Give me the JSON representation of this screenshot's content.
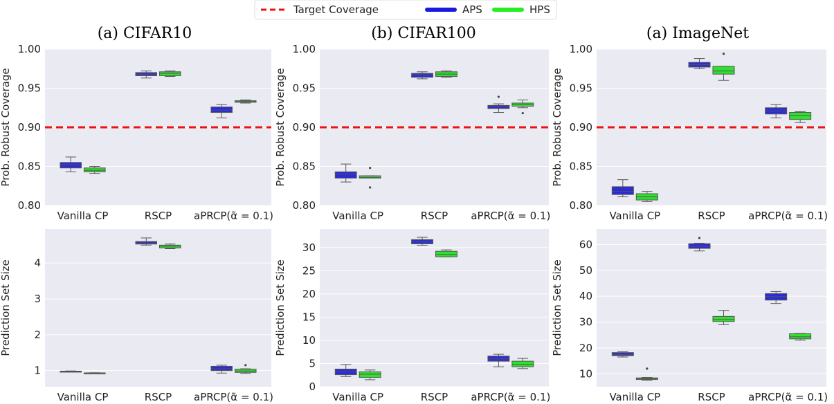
{
  "legend": {
    "items": [
      {
        "label": "Target Coverage",
        "color": "#ee1111",
        "style": "dashed"
      },
      {
        "label": "APS",
        "color": "#1a1adf",
        "style": "solid"
      },
      {
        "label": "HPS",
        "color": "#22ee22",
        "style": "solid"
      }
    ]
  },
  "columns": [
    {
      "title": "(a) CIFAR10"
    },
    {
      "title": "(b) CIFAR100"
    },
    {
      "title": "(a) ImageNet"
    }
  ],
  "categories": [
    "Vanilla CP",
    "RSCP",
    "aPRCP(α̃ = 0.1)"
  ],
  "colors": {
    "aps": "#2b2bd9",
    "hps": "#2fe02f",
    "target": "#ee1111",
    "panel_bg": "#eaeaf2",
    "grid": "#ffffff"
  },
  "chart_data": [
    {
      "type": "box",
      "dataset": "CIFAR10",
      "ylabel": "Prob. Robust Coverage",
      "ylim": [
        0.8,
        1.0
      ],
      "yticks": [
        "0.80",
        "0.85",
        "0.90",
        "0.95",
        "1.00"
      ],
      "ytick_values": [
        0.8,
        0.85,
        0.9,
        0.95,
        1.0
      ],
      "target": 0.9,
      "series": [
        {
          "name": "APS",
          "boxes": [
            {
              "whislo": 0.843,
              "q1": 0.848,
              "med": 0.852,
              "q3": 0.855,
              "whishi": 0.862,
              "fliers": []
            },
            {
              "whislo": 0.963,
              "q1": 0.966,
              "med": 0.968,
              "q3": 0.97,
              "whishi": 0.972,
              "fliers": []
            },
            {
              "whislo": 0.912,
              "q1": 0.919,
              "med": 0.922,
              "q3": 0.926,
              "whishi": 0.929,
              "fliers": []
            }
          ]
        },
        {
          "name": "HPS",
          "boxes": [
            {
              "whislo": 0.841,
              "q1": 0.843,
              "med": 0.845,
              "q3": 0.848,
              "whishi": 0.85,
              "fliers": []
            },
            {
              "whislo": 0.965,
              "q1": 0.966,
              "med": 0.969,
              "q3": 0.971,
              "whishi": 0.972,
              "fliers": []
            },
            {
              "whislo": 0.931,
              "q1": 0.932,
              "med": 0.933,
              "q3": 0.934,
              "whishi": 0.935,
              "fliers": []
            }
          ]
        }
      ]
    },
    {
      "type": "box",
      "dataset": "CIFAR100",
      "ylabel": "Prob. Robust Coverage",
      "ylim": [
        0.8,
        1.0
      ],
      "yticks": [
        "0.80",
        "0.85",
        "0.90",
        "0.95",
        "1.00"
      ],
      "ytick_values": [
        0.8,
        0.85,
        0.9,
        0.95,
        1.0
      ],
      "target": 0.9,
      "series": [
        {
          "name": "APS",
          "boxes": [
            {
              "whislo": 0.83,
              "q1": 0.835,
              "med": 0.84,
              "q3": 0.843,
              "whishi": 0.853,
              "fliers": []
            },
            {
              "whislo": 0.962,
              "q1": 0.964,
              "med": 0.967,
              "q3": 0.969,
              "whishi": 0.971,
              "fliers": []
            },
            {
              "whislo": 0.919,
              "q1": 0.924,
              "med": 0.926,
              "q3": 0.928,
              "whishi": 0.93,
              "fliers": [
                0.939
              ]
            }
          ]
        },
        {
          "name": "HPS",
          "boxes": [
            {
              "whislo": 0.835,
              "q1": 0.835,
              "med": 0.836,
              "q3": 0.838,
              "whishi": 0.838,
              "fliers": [
                0.848,
                0.823
              ]
            },
            {
              "whislo": 0.964,
              "q1": 0.965,
              "med": 0.968,
              "q3": 0.971,
              "whishi": 0.972,
              "fliers": []
            },
            {
              "whislo": 0.925,
              "q1": 0.927,
              "med": 0.929,
              "q3": 0.931,
              "whishi": 0.935,
              "fliers": [
                0.918
              ]
            }
          ]
        }
      ]
    },
    {
      "type": "box",
      "dataset": "ImageNet",
      "ylabel": "Prob. Robust Coverage",
      "ylim": [
        0.8,
        1.0
      ],
      "yticks": [
        "0.80",
        "0.85",
        "0.90",
        "0.95",
        "1.00"
      ],
      "ytick_values": [
        0.8,
        0.85,
        0.9,
        0.95,
        1.0
      ],
      "target": 0.9,
      "series": [
        {
          "name": "APS",
          "boxes": [
            {
              "whislo": 0.811,
              "q1": 0.814,
              "med": 0.818,
              "q3": 0.824,
              "whishi": 0.833,
              "fliers": []
            },
            {
              "whislo": 0.975,
              "q1": 0.977,
              "med": 0.98,
              "q3": 0.983,
              "whishi": 0.988,
              "fliers": []
            },
            {
              "whislo": 0.912,
              "q1": 0.917,
              "med": 0.921,
              "q3": 0.925,
              "whishi": 0.929,
              "fliers": []
            }
          ]
        },
        {
          "name": "HPS",
          "boxes": [
            {
              "whislo": 0.805,
              "q1": 0.807,
              "med": 0.811,
              "q3": 0.815,
              "whishi": 0.818,
              "fliers": []
            },
            {
              "whislo": 0.96,
              "q1": 0.968,
              "med": 0.972,
              "q3": 0.978,
              "whishi": 0.978,
              "fliers": [
                0.994
              ]
            },
            {
              "whislo": 0.906,
              "q1": 0.91,
              "med": 0.915,
              "q3": 0.919,
              "whishi": 0.92,
              "fliers": []
            }
          ]
        }
      ]
    },
    {
      "type": "box",
      "dataset": "CIFAR10",
      "ylabel": "Prediction Set Size",
      "ylim": [
        0.55,
        4.95
      ],
      "yticks": [
        "1",
        "2",
        "3",
        "4"
      ],
      "ytick_values": [
        1,
        2,
        3,
        4
      ],
      "series": [
        {
          "name": "APS",
          "boxes": [
            {
              "whislo": 0.97,
              "q1": 0.975,
              "med": 0.98,
              "q3": 0.985,
              "whishi": 0.99,
              "fliers": []
            },
            {
              "whislo": 4.5,
              "q1": 4.53,
              "med": 4.56,
              "q3": 4.6,
              "whishi": 4.7,
              "fliers": []
            },
            {
              "whislo": 0.93,
              "q1": 1.0,
              "med": 1.05,
              "q3": 1.12,
              "whishi": 1.15,
              "fliers": []
            }
          ]
        },
        {
          "name": "HPS",
          "boxes": [
            {
              "whislo": 0.92,
              "q1": 0.925,
              "med": 0.93,
              "q3": 0.935,
              "whishi": 0.94,
              "fliers": []
            },
            {
              "whislo": 4.4,
              "q1": 4.42,
              "med": 4.47,
              "q3": 4.5,
              "whishi": 4.53,
              "fliers": []
            },
            {
              "whislo": 0.92,
              "q1": 0.95,
              "med": 0.99,
              "q3": 1.04,
              "whishi": 1.05,
              "fliers": [
                1.15
              ]
            }
          ]
        }
      ]
    },
    {
      "type": "box",
      "dataset": "CIFAR100",
      "ylabel": "Prediction Set Size",
      "ylim": [
        0,
        34
      ],
      "yticks": [
        "0",
        "5",
        "10",
        "15",
        "20",
        "25",
        "30"
      ],
      "ytick_values": [
        0,
        5,
        10,
        15,
        20,
        25,
        30
      ],
      "series": [
        {
          "name": "APS",
          "boxes": [
            {
              "whislo": 2.2,
              "q1": 2.6,
              "med": 3.2,
              "q3": 3.8,
              "whishi": 4.8,
              "fliers": []
            },
            {
              "whislo": 30.5,
              "q1": 30.8,
              "med": 31.2,
              "q3": 31.7,
              "whishi": 32.2,
              "fliers": []
            },
            {
              "whislo": 4.3,
              "q1": 5.5,
              "med": 6.0,
              "q3": 6.6,
              "whishi": 7.0,
              "fliers": []
            }
          ]
        },
        {
          "name": "HPS",
          "boxes": [
            {
              "whislo": 1.5,
              "q1": 2.0,
              "med": 2.7,
              "q3": 3.2,
              "whishi": 3.6,
              "fliers": []
            },
            {
              "whislo": 28.0,
              "q1": 28.0,
              "med": 28.5,
              "q3": 29.2,
              "whishi": 29.5,
              "fliers": []
            },
            {
              "whislo": 3.9,
              "q1": 4.3,
              "med": 4.8,
              "q3": 5.5,
              "whishi": 6.1,
              "fliers": []
            }
          ]
        }
      ]
    },
    {
      "type": "box",
      "dataset": "ImageNet",
      "ylabel": "Prediction Set Size",
      "ylim": [
        5,
        66
      ],
      "yticks": [
        "10",
        "20",
        "30",
        "40",
        "50",
        "60"
      ],
      "ytick_values": [
        10,
        20,
        30,
        40,
        50,
        60
      ],
      "series": [
        {
          "name": "APS",
          "boxes": [
            {
              "whislo": 16.5,
              "q1": 17.0,
              "med": 17.5,
              "q3": 18.2,
              "whishi": 18.5,
              "fliers": []
            },
            {
              "whislo": 57.5,
              "q1": 58.5,
              "med": 59.3,
              "q3": 60.3,
              "whishi": 60.5,
              "fliers": [
                62.5
              ]
            },
            {
              "whislo": 37.2,
              "q1": 38.5,
              "med": 39.8,
              "q3": 41.0,
              "whishi": 41.8,
              "fliers": []
            }
          ]
        },
        {
          "name": "HPS",
          "boxes": [
            {
              "whislo": 7.5,
              "q1": 7.8,
              "med": 8.1,
              "q3": 8.4,
              "whishi": 8.6,
              "fliers": [
                12.0
              ]
            },
            {
              "whislo": 29.0,
              "q1": 30.2,
              "med": 31.0,
              "q3": 32.2,
              "whishi": 34.5,
              "fliers": []
            },
            {
              "whislo": 23.0,
              "q1": 23.5,
              "med": 24.3,
              "q3": 25.5,
              "whishi": 25.6,
              "fliers": []
            }
          ]
        }
      ]
    }
  ]
}
